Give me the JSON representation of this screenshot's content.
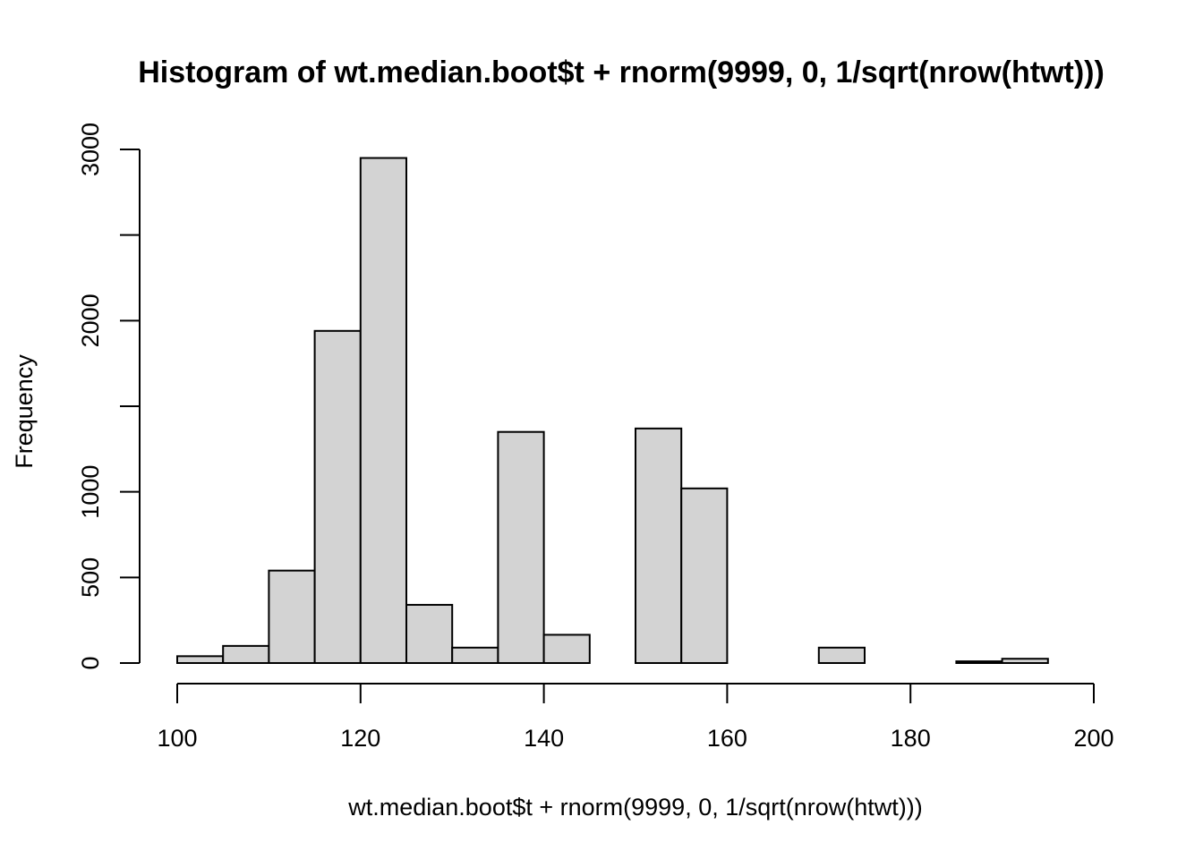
{
  "chart_data": {
    "type": "bar",
    "title": "Histogram of wt.median.boot$t + rnorm(9999, 0, 1/sqrt(nrow(htwt)))",
    "xlabel": "wt.median.boot$t + rnorm(9999, 0, 1/sqrt(nrow(htwt)))",
    "ylabel": "Frequency",
    "xlim": [
      100,
      200
    ],
    "ylim": [
      0,
      3000
    ],
    "x_ticks": [
      100,
      120,
      140,
      160,
      180,
      200
    ],
    "y_ticks": [
      0,
      500,
      1000,
      2000,
      3000
    ],
    "y_tick_labels": [
      "0",
      "500",
      "1000",
      "2000",
      "3000"
    ],
    "bins": [
      {
        "x0": 100,
        "x1": 105,
        "count": 40
      },
      {
        "x0": 105,
        "x1": 110,
        "count": 100
      },
      {
        "x0": 110,
        "x1": 115,
        "count": 540
      },
      {
        "x0": 115,
        "x1": 120,
        "count": 1940
      },
      {
        "x0": 120,
        "x1": 125,
        "count": 2950
      },
      {
        "x0": 125,
        "x1": 130,
        "count": 340
      },
      {
        "x0": 130,
        "x1": 135,
        "count": 90
      },
      {
        "x0": 135,
        "x1": 140,
        "count": 1350
      },
      {
        "x0": 140,
        "x1": 145,
        "count": 165
      },
      {
        "x0": 145,
        "x1": 150,
        "count": 0
      },
      {
        "x0": 150,
        "x1": 155,
        "count": 1370
      },
      {
        "x0": 155,
        "x1": 160,
        "count": 1020
      },
      {
        "x0": 160,
        "x1": 165,
        "count": 0
      },
      {
        "x0": 165,
        "x1": 170,
        "count": 0
      },
      {
        "x0": 170,
        "x1": 175,
        "count": 90
      },
      {
        "x0": 175,
        "x1": 180,
        "count": 0
      },
      {
        "x0": 180,
        "x1": 185,
        "count": 0
      },
      {
        "x0": 185,
        "x1": 190,
        "count": 10
      },
      {
        "x0": 190,
        "x1": 195,
        "count": 25
      },
      {
        "x0": 195,
        "x1": 200,
        "count": 0
      }
    ],
    "colors": {
      "bar_fill": "#d3d3d3",
      "bar_stroke": "#000000"
    },
    "grid": false
  }
}
